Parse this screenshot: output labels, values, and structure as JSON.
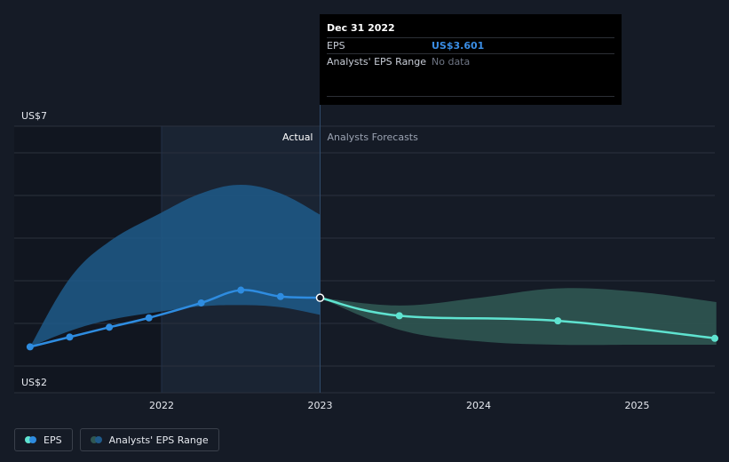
{
  "tooltip": {
    "date": "Dec 31 2022",
    "rows": [
      {
        "key": "EPS",
        "value": "US$3.601"
      },
      {
        "key": "Analysts' EPS Range",
        "value": "No data"
      }
    ]
  },
  "sections": {
    "actual": "Actual",
    "forecast": "Analysts Forecasts"
  },
  "legend": {
    "eps": "EPS",
    "range": "Analysts' EPS Range"
  },
  "colors": {
    "background": "#151b26",
    "eps_actual": "#2e8ce0",
    "eps_forecast": "#5fe3d0",
    "range_actual": "#1f5a8a",
    "range_forecast": "#2f5752"
  },
  "chart_data": {
    "type": "line",
    "title": "",
    "xlabel": "",
    "ylabel": "",
    "ylim": [
      2,
      7
    ],
    "y_tick_labels": [
      {
        "value": 7,
        "label": "US$7"
      },
      {
        "value": 2,
        "label": "US$2"
      }
    ],
    "x_tick_labels": [
      {
        "value": 2022,
        "label": "2022"
      },
      {
        "value": 2023,
        "label": "2023"
      },
      {
        "value": 2024,
        "label": "2024"
      },
      {
        "value": 2025,
        "label": "2025"
      }
    ],
    "gridlines_y": [
      2,
      3,
      4,
      5,
      6,
      7
    ],
    "xlim": [
      2021.17,
      2025.5
    ],
    "actual_until": 2023.0,
    "highlight_from": 2022.0,
    "series": [
      {
        "name": "EPS",
        "segment": "actual",
        "points": [
          [
            2021.17,
            2.45
          ],
          [
            2021.42,
            2.68
          ],
          [
            2021.67,
            2.91
          ],
          [
            2021.92,
            3.13
          ],
          [
            2022.25,
            3.48
          ],
          [
            2022.5,
            3.78
          ],
          [
            2022.75,
            3.63
          ],
          [
            2023.0,
            3.601
          ]
        ]
      },
      {
        "name": "EPS",
        "segment": "forecast",
        "points": [
          [
            2023.0,
            3.601
          ],
          [
            2023.5,
            3.18
          ],
          [
            2024.5,
            3.06
          ],
          [
            2025.5,
            2.65
          ]
        ]
      }
    ],
    "range": [
      {
        "name": "Analysts' EPS Range",
        "segment": "actual",
        "upper": [
          [
            2021.17,
            2.45
          ],
          [
            2021.42,
            4.05
          ],
          [
            2021.67,
            4.92
          ],
          [
            2022.0,
            5.6
          ],
          [
            2022.25,
            6.05
          ],
          [
            2022.5,
            6.25
          ],
          [
            2022.75,
            6.05
          ],
          [
            2023.0,
            5.55
          ]
        ],
        "lower": [
          [
            2021.17,
            2.45
          ],
          [
            2021.42,
            2.82
          ],
          [
            2021.67,
            3.08
          ],
          [
            2022.0,
            3.28
          ],
          [
            2022.25,
            3.4
          ],
          [
            2022.5,
            3.43
          ],
          [
            2022.75,
            3.38
          ],
          [
            2023.0,
            3.2
          ]
        ]
      },
      {
        "name": "Analysts' EPS Range",
        "segment": "forecast",
        "upper": [
          [
            2023.0,
            3.601
          ],
          [
            2023.5,
            3.42
          ],
          [
            2024.0,
            3.6
          ],
          [
            2024.5,
            3.82
          ],
          [
            2025.0,
            3.74
          ],
          [
            2025.5,
            3.5
          ]
        ],
        "lower": [
          [
            2023.0,
            3.601
          ],
          [
            2023.5,
            2.85
          ],
          [
            2024.0,
            2.58
          ],
          [
            2024.5,
            2.5
          ],
          [
            2025.0,
            2.5
          ],
          [
            2025.5,
            2.5
          ]
        ]
      }
    ],
    "markers": {
      "actual": [
        2021.17,
        2021.42,
        2021.67,
        2021.92,
        2022.25,
        2022.5,
        2022.75
      ],
      "forecast": [
        2023.5,
        2024.5,
        2025.5
      ],
      "highlight": 2023.0
    }
  }
}
